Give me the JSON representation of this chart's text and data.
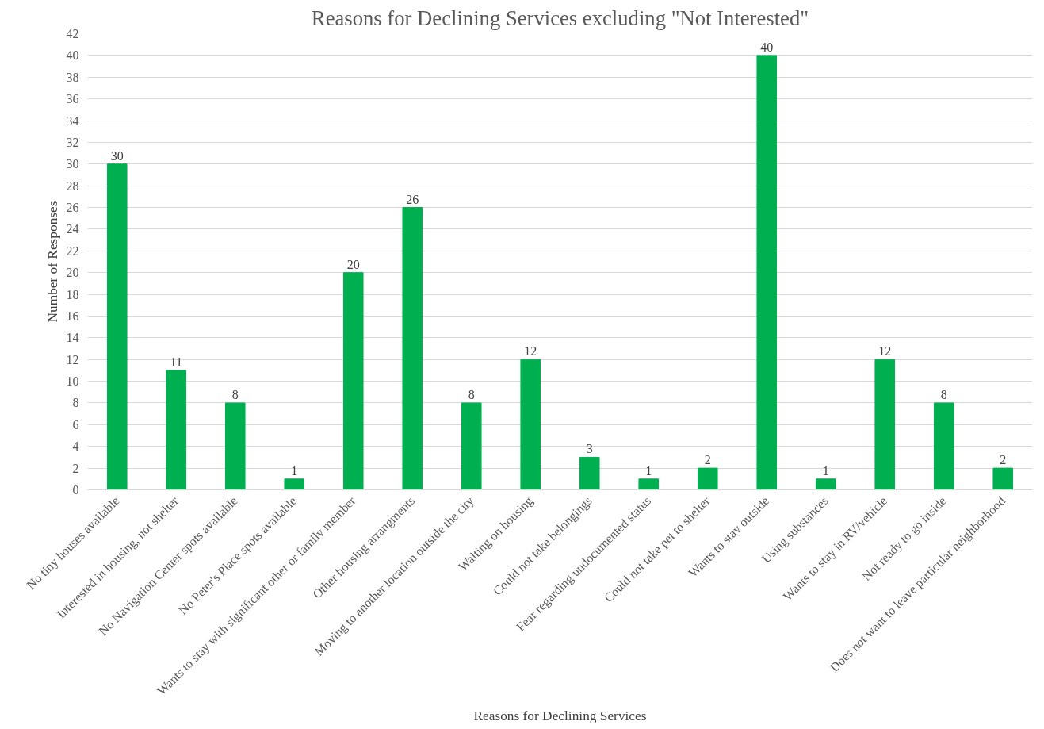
{
  "chart_data": {
    "type": "bar",
    "title": "Reasons for Declining Services excluding \"Not Interested\"",
    "xlabel": "Reasons for Declining Services",
    "ylabel": "Number of Responses",
    "categories": [
      "No tiny houses available",
      "Interested in housing, not shelter",
      "No Navigation Center spots available",
      "No Peter's Place spots available",
      "Wants to stay with significant other or family member",
      "Other housing arrangments",
      "Moving to another location outside the city",
      "Waiting on housing",
      "Could not take belongings",
      "Fear regarding undocumented status",
      "Could not take pet to shelter",
      "Wants to stay outside",
      "Using substances",
      "Wants to stay in RV/vehicle",
      "Not ready to go inside",
      "Does not want to leave particular neighborhood"
    ],
    "values": [
      30,
      11,
      8,
      1,
      20,
      26,
      8,
      12,
      3,
      1,
      2,
      40,
      1,
      12,
      8,
      2
    ],
    "color": "#00b050",
    "ylim": [
      0,
      42
    ],
    "yticks": [
      0,
      2,
      4,
      6,
      8,
      10,
      12,
      14,
      16,
      18,
      20,
      22,
      24,
      26,
      28,
      30,
      32,
      34,
      36,
      38,
      40,
      42
    ],
    "grid": "y",
    "data_labels": true
  }
}
